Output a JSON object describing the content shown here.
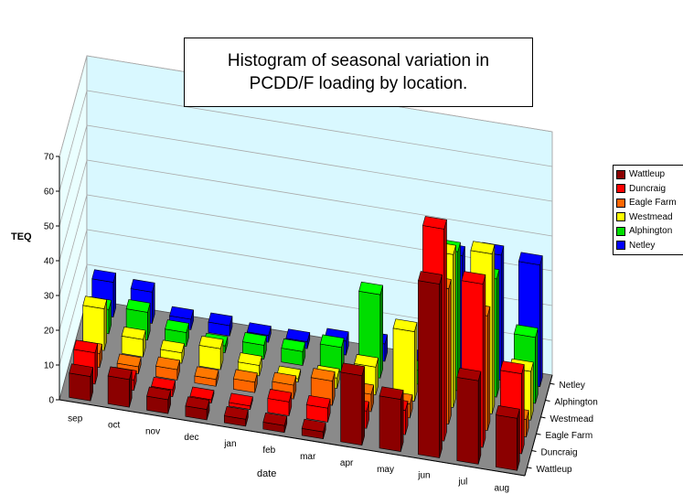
{
  "chart_data": {
    "type": "bar",
    "title_lines": [
      "Histogram of seasonal variation in",
      "PCDD/F loading by location."
    ],
    "xlabel": "date",
    "ylabel": "TEQ",
    "ylim": [
      0,
      70
    ],
    "yticks": [
      "0",
      "10",
      "20",
      "30",
      "40",
      "50",
      "60",
      "70"
    ],
    "categories": [
      "sep",
      "oct",
      "nov",
      "dec",
      "jan",
      "feb",
      "mar",
      "apr",
      "may",
      "jun",
      "jul",
      "aug"
    ],
    "series": [
      {
        "name": "Wattleup",
        "color": "#8B0000",
        "values": [
          7,
          8,
          4,
          3,
          2,
          2,
          2,
          20,
          15,
          50,
          24,
          15
        ]
      },
      {
        "name": "Duncraig",
        "color": "#FF0000",
        "values": [
          9,
          3,
          2,
          1,
          1,
          4,
          4,
          5,
          7,
          61,
          47,
          23
        ]
      },
      {
        "name": "Eagle Farm",
        "color": "#FF6600",
        "values": [
          4,
          2,
          3,
          2,
          3,
          4,
          7,
          5,
          4,
          39,
          33,
          5
        ]
      },
      {
        "name": "Westmead",
        "color": "#FFFF00",
        "values": [
          12,
          5,
          3,
          6,
          3,
          1,
          3,
          8,
          20,
          44,
          46,
          14
        ]
      },
      {
        "name": "Alphington",
        "color": "#00DD00",
        "values": [
          7,
          8,
          4,
          2,
          4,
          4,
          7,
          24,
          4,
          40,
          34,
          19
        ]
      },
      {
        "name": "Netley",
        "color": "#0000FF",
        "values": [
          10,
          9,
          3,
          3,
          2,
          2,
          4,
          5,
          2,
          34,
          36,
          35
        ]
      }
    ],
    "grid": true,
    "legend_position": "right"
  }
}
